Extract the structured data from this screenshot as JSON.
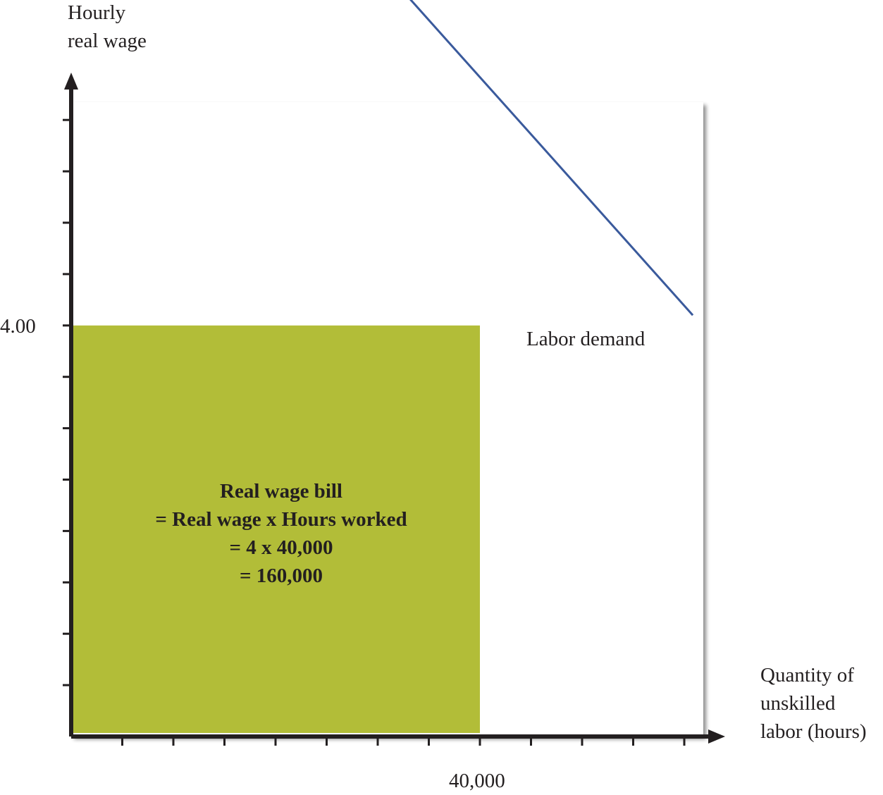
{
  "chart_data": {
    "type": "line",
    "title": "",
    "ylabel_lines": [
      "Hourly",
      "real wage"
    ],
    "xlabel_lines": [
      "Quantity of",
      "unskilled",
      "labor (hours)"
    ],
    "xlim": [
      0,
      70000
    ],
    "ylim": [
      0,
      9
    ],
    "x_ticks_count": 12,
    "y_ticks_count": 12,
    "x_tick_labels": [
      {
        "value": 40000,
        "label": "40,000"
      }
    ],
    "y_tick_labels": [
      {
        "value": 4,
        "label": "4.00"
      }
    ],
    "series": [
      {
        "name": "Labor demand",
        "color": "#3a5a9c",
        "x": [
          20000,
          60833
        ],
        "y": [
          8.64,
          4.1
        ]
      }
    ],
    "series_label": "Labor demand",
    "shaded_area": {
      "x_range": [
        0,
        40000
      ],
      "y_range": [
        0,
        4
      ],
      "color": "#b2bd38",
      "text_lines": [
        "Real wage bill",
        "= Real wage x Hours worked",
        "= 4 x 40,000",
        "= 160,000"
      ]
    },
    "grid": false,
    "legend": "none"
  }
}
